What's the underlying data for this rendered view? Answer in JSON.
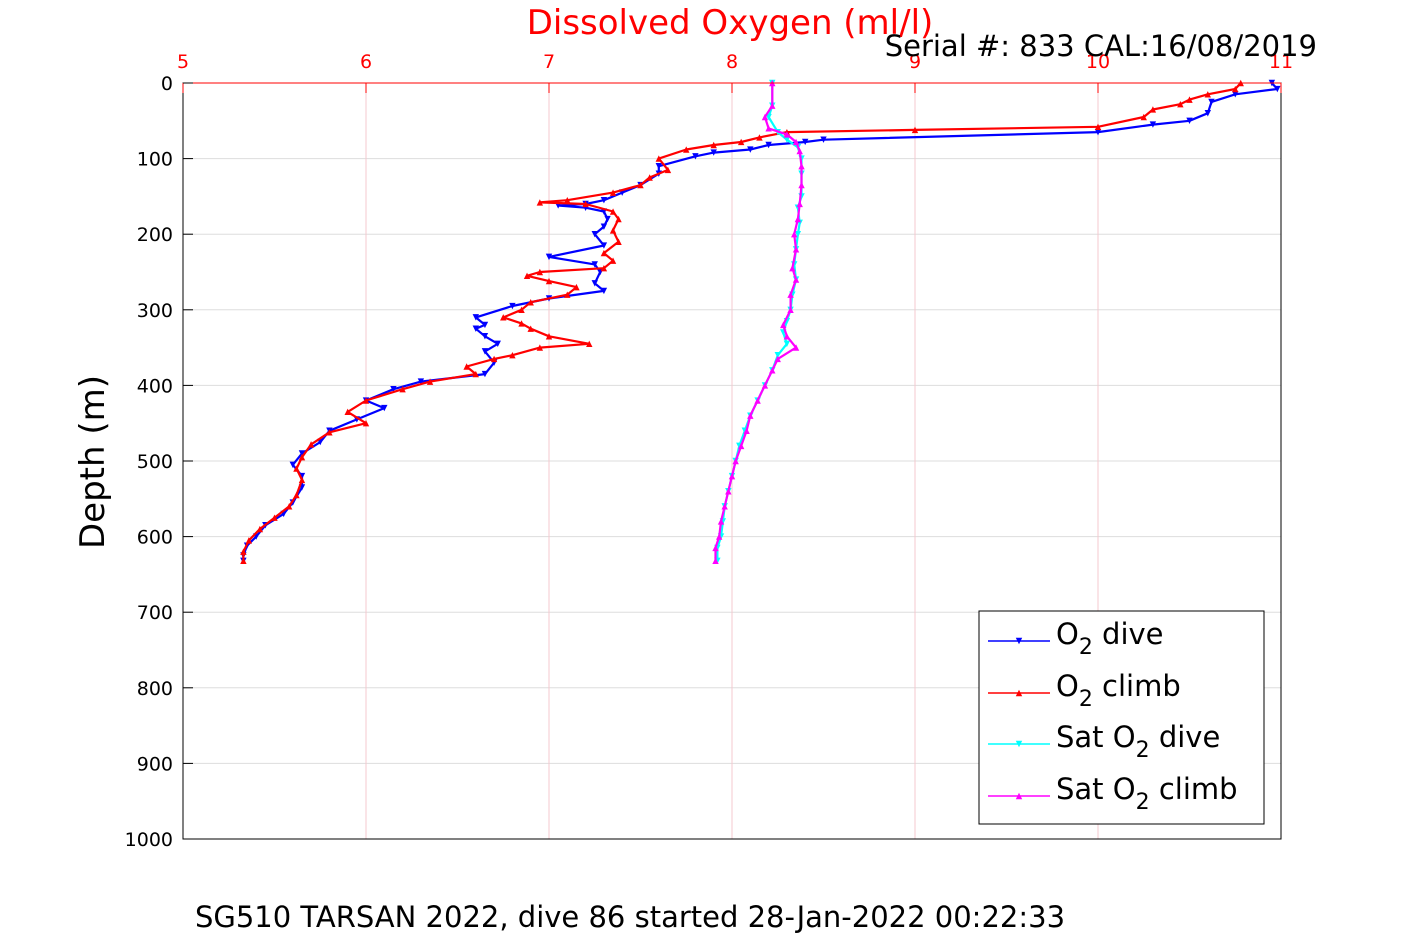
{
  "chart_data": {
    "type": "line",
    "title": "Dissolved Oxygen (ml/l)",
    "serial_text": "Serial #: 833  CAL:16/08/2019",
    "ylabel": "Depth (m)",
    "caption": "SG510 TARSAN 2022, dive 86 started 28-Jan-2022 00:22:33",
    "xlim": [
      5,
      11
    ],
    "ylim": [
      0,
      1000
    ],
    "y_reversed": true,
    "x_axis_position": "top",
    "x_ticks": [
      5,
      6,
      7,
      8,
      9,
      10,
      11
    ],
    "y_ticks": [
      0,
      100,
      200,
      300,
      400,
      500,
      600,
      700,
      800,
      900,
      1000
    ],
    "grid": true,
    "colors": {
      "grid_x": "#f4c9cf",
      "grid_y": "#dddddd",
      "axis_x": "#ff0000",
      "axis_y": "#000000",
      "title": "#ff0000"
    },
    "legend": {
      "position": "bottom-right",
      "entries": [
        {
          "prefix": "O",
          "sub": "2",
          "suffix": " dive",
          "color": "#0000ff"
        },
        {
          "prefix": "O",
          "sub": "2",
          "suffix": " climb",
          "color": "#ff0000"
        },
        {
          "prefix": "Sat O",
          "sub": "2",
          "suffix": " dive",
          "color": "#00ffff"
        },
        {
          "prefix": "Sat O",
          "sub": "2",
          "suffix": " climb",
          "color": "#ff00ff"
        }
      ]
    },
    "series": [
      {
        "name": "O2 dive",
        "color": "#0000ff",
        "marker": "down",
        "points": [
          [
            10.95,
            0
          ],
          [
            10.98,
            8
          ],
          [
            10.75,
            15
          ],
          [
            10.62,
            25
          ],
          [
            10.6,
            40
          ],
          [
            10.5,
            50
          ],
          [
            10.3,
            55
          ],
          [
            10.0,
            65
          ],
          [
            8.5,
            75
          ],
          [
            8.4,
            78
          ],
          [
            8.2,
            82
          ],
          [
            8.1,
            88
          ],
          [
            7.9,
            92
          ],
          [
            7.8,
            97
          ],
          [
            7.6,
            110
          ],
          [
            7.6,
            120
          ],
          [
            7.5,
            135
          ],
          [
            7.4,
            145
          ],
          [
            7.3,
            155
          ],
          [
            7.2,
            160
          ],
          [
            7.05,
            162
          ],
          [
            7.2,
            165
          ],
          [
            7.3,
            170
          ],
          [
            7.32,
            180
          ],
          [
            7.3,
            190
          ],
          [
            7.25,
            200
          ],
          [
            7.3,
            215
          ],
          [
            7.0,
            230
          ],
          [
            7.25,
            240
          ],
          [
            7.28,
            250
          ],
          [
            7.25,
            265
          ],
          [
            7.3,
            275
          ],
          [
            7.0,
            285
          ],
          [
            6.8,
            295
          ],
          [
            6.6,
            310
          ],
          [
            6.65,
            320
          ],
          [
            6.6,
            325
          ],
          [
            6.65,
            335
          ],
          [
            6.72,
            345
          ],
          [
            6.65,
            355
          ],
          [
            6.7,
            370
          ],
          [
            6.65,
            385
          ],
          [
            6.3,
            395
          ],
          [
            6.15,
            405
          ],
          [
            6.0,
            420
          ],
          [
            6.1,
            430
          ],
          [
            5.95,
            445
          ],
          [
            5.8,
            460
          ],
          [
            5.75,
            475
          ],
          [
            5.65,
            490
          ],
          [
            5.6,
            505
          ],
          [
            5.65,
            520
          ],
          [
            5.65,
            535
          ],
          [
            5.6,
            555
          ],
          [
            5.55,
            570
          ],
          [
            5.45,
            585
          ],
          [
            5.4,
            600
          ],
          [
            5.35,
            612
          ],
          [
            5.33,
            625
          ],
          [
            5.33,
            632
          ]
        ]
      },
      {
        "name": "O2 climb",
        "color": "#ff0000",
        "marker": "up",
        "points": [
          [
            10.78,
            0
          ],
          [
            10.75,
            8
          ],
          [
            10.6,
            15
          ],
          [
            10.5,
            22
          ],
          [
            10.45,
            28
          ],
          [
            10.3,
            35
          ],
          [
            10.25,
            45
          ],
          [
            10.0,
            58
          ],
          [
            9.0,
            62
          ],
          [
            8.3,
            65
          ],
          [
            8.15,
            72
          ],
          [
            8.05,
            78
          ],
          [
            7.9,
            82
          ],
          [
            7.75,
            88
          ],
          [
            7.6,
            100
          ],
          [
            7.65,
            115
          ],
          [
            7.55,
            125
          ],
          [
            7.5,
            135
          ],
          [
            7.35,
            145
          ],
          [
            7.1,
            155
          ],
          [
            6.95,
            158
          ],
          [
            7.2,
            160
          ],
          [
            7.35,
            170
          ],
          [
            7.38,
            180
          ],
          [
            7.35,
            195
          ],
          [
            7.38,
            210
          ],
          [
            7.3,
            225
          ],
          [
            7.35,
            235
          ],
          [
            7.3,
            245
          ],
          [
            6.95,
            250
          ],
          [
            6.88,
            255
          ],
          [
            7.0,
            262
          ],
          [
            7.15,
            270
          ],
          [
            7.1,
            280
          ],
          [
            6.9,
            290
          ],
          [
            6.85,
            300
          ],
          [
            6.75,
            310
          ],
          [
            6.85,
            318
          ],
          [
            6.9,
            325
          ],
          [
            7.0,
            335
          ],
          [
            7.22,
            345
          ],
          [
            6.95,
            350
          ],
          [
            6.8,
            360
          ],
          [
            6.7,
            365
          ],
          [
            6.55,
            375
          ],
          [
            6.6,
            385
          ],
          [
            6.35,
            395
          ],
          [
            6.2,
            405
          ],
          [
            6.0,
            420
          ],
          [
            5.9,
            435
          ],
          [
            6.0,
            450
          ],
          [
            5.8,
            462
          ],
          [
            5.7,
            478
          ],
          [
            5.65,
            495
          ],
          [
            5.62,
            510
          ],
          [
            5.65,
            525
          ],
          [
            5.62,
            545
          ],
          [
            5.58,
            560
          ],
          [
            5.5,
            575
          ],
          [
            5.42,
            590
          ],
          [
            5.36,
            605
          ],
          [
            5.33,
            620
          ],
          [
            5.33,
            632
          ]
        ]
      },
      {
        "name": "Sat O2 dive",
        "color": "#00ffff",
        "marker": "down",
        "points": [
          [
            8.22,
            0
          ],
          [
            8.22,
            30
          ],
          [
            8.2,
            45
          ],
          [
            8.25,
            65
          ],
          [
            8.3,
            75
          ],
          [
            8.36,
            85
          ],
          [
            8.38,
            100
          ],
          [
            8.38,
            120
          ],
          [
            8.38,
            150
          ],
          [
            8.36,
            165
          ],
          [
            8.37,
            185
          ],
          [
            8.36,
            200
          ],
          [
            8.35,
            220
          ],
          [
            8.34,
            240
          ],
          [
            8.35,
            260
          ],
          [
            8.33,
            280
          ],
          [
            8.32,
            300
          ],
          [
            8.3,
            315
          ],
          [
            8.28,
            330
          ],
          [
            8.3,
            345
          ],
          [
            8.25,
            360
          ],
          [
            8.22,
            380
          ],
          [
            8.18,
            400
          ],
          [
            8.14,
            420
          ],
          [
            8.1,
            440
          ],
          [
            8.07,
            460
          ],
          [
            8.04,
            480
          ],
          [
            8.02,
            500
          ],
          [
            8.0,
            520
          ],
          [
            7.98,
            540
          ],
          [
            7.96,
            560
          ],
          [
            7.95,
            580
          ],
          [
            7.94,
            600
          ],
          [
            7.92,
            615
          ],
          [
            7.92,
            632
          ]
        ]
      },
      {
        "name": "Sat O2 climb",
        "color": "#ff00ff",
        "marker": "up",
        "points": [
          [
            8.22,
            0
          ],
          [
            8.22,
            30
          ],
          [
            8.18,
            45
          ],
          [
            8.2,
            60
          ],
          [
            8.3,
            68
          ],
          [
            8.35,
            78
          ],
          [
            8.37,
            90
          ],
          [
            8.38,
            110
          ],
          [
            8.38,
            135
          ],
          [
            8.37,
            160
          ],
          [
            8.36,
            180
          ],
          [
            8.34,
            200
          ],
          [
            8.35,
            220
          ],
          [
            8.33,
            245
          ],
          [
            8.35,
            260
          ],
          [
            8.32,
            280
          ],
          [
            8.32,
            300
          ],
          [
            8.28,
            320
          ],
          [
            8.3,
            335
          ],
          [
            8.35,
            350
          ],
          [
            8.25,
            365
          ],
          [
            8.22,
            380
          ],
          [
            8.18,
            400
          ],
          [
            8.14,
            420
          ],
          [
            8.1,
            440
          ],
          [
            8.08,
            460
          ],
          [
            8.05,
            480
          ],
          [
            8.02,
            500
          ],
          [
            8.0,
            520
          ],
          [
            7.98,
            540
          ],
          [
            7.96,
            560
          ],
          [
            7.94,
            580
          ],
          [
            7.93,
            600
          ],
          [
            7.91,
            615
          ],
          [
            7.91,
            632
          ]
        ]
      }
    ]
  }
}
